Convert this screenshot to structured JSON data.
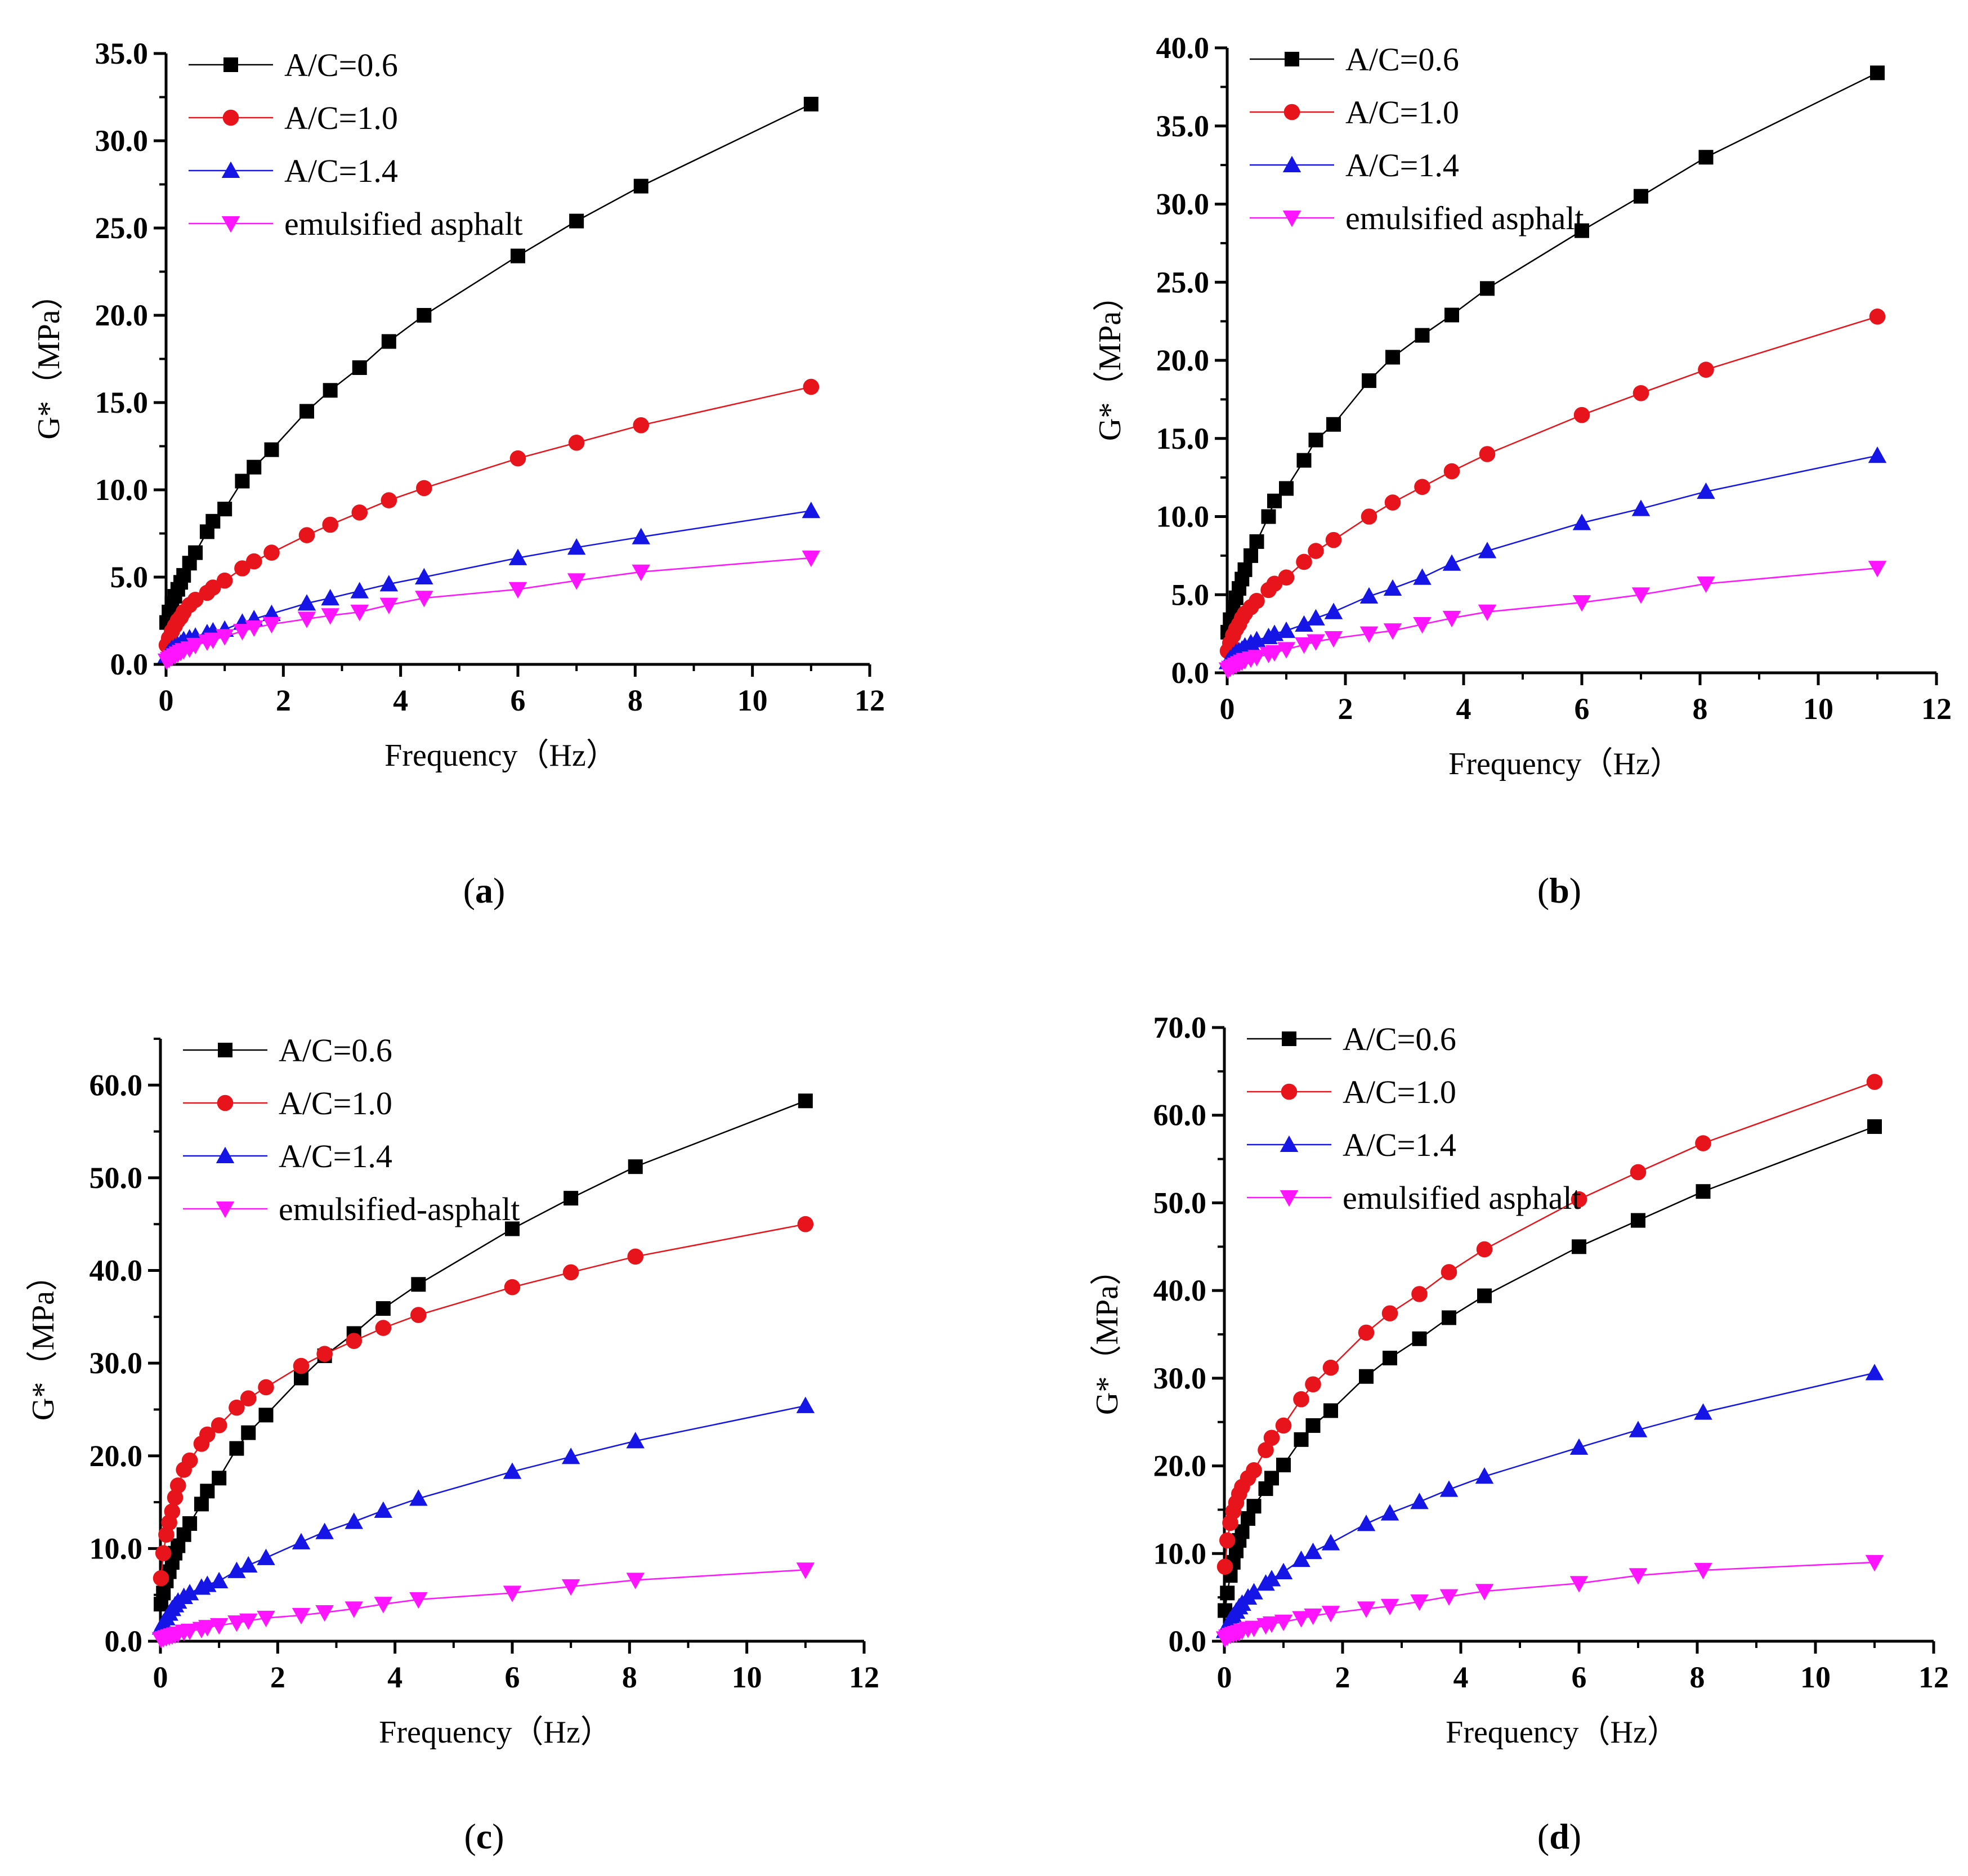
{
  "figure": {
    "panels": [
      {
        "caption": "a"
      },
      {
        "caption": "b"
      },
      {
        "caption": "c"
      },
      {
        "caption": "d"
      }
    ]
  },
  "chart_data": [
    {
      "type": "line",
      "panel": "a",
      "xlabel": "Frequency（Hz）",
      "ylabel": "G*（MPa）",
      "xlim": [
        0,
        12
      ],
      "ylim": [
        0,
        35
      ],
      "xticks": [
        "0",
        "2",
        "4",
        "6",
        "8",
        "10",
        "12"
      ],
      "yticks": [
        "0.0",
        "5.0",
        "10.0",
        "15.0",
        "20.0",
        "25.0",
        "30.0",
        "35.0"
      ],
      "legend_position": "top-left",
      "x": [
        0.01,
        0.05,
        0.1,
        0.15,
        0.2,
        0.25,
        0.3,
        0.4,
        0.5,
        0.7,
        0.8,
        1.0,
        1.3,
        1.5,
        1.8,
        2.4,
        2.8,
        3.3,
        3.8,
        4.4,
        6.0,
        7.0,
        8.1,
        11.0
      ],
      "series": [
        {
          "name": "A/C=0.6",
          "color": "#000000",
          "marker": "square",
          "values": [
            2.4,
            3.0,
            3.5,
            3.9,
            4.3,
            4.7,
            5.1,
            5.8,
            6.4,
            7.6,
            8.2,
            8.9,
            10.5,
            11.3,
            12.3,
            14.5,
            15.7,
            17.0,
            18.5,
            20.0,
            23.4,
            25.4,
            27.4,
            32.1
          ]
        },
        {
          "name": "A/C=1.0",
          "color": "#e8141c",
          "marker": "circle",
          "values": [
            1.1,
            1.5,
            1.9,
            2.2,
            2.5,
            2.7,
            3.0,
            3.4,
            3.7,
            4.1,
            4.4,
            4.8,
            5.5,
            5.9,
            6.4,
            7.4,
            8.0,
            8.7,
            9.4,
            10.1,
            11.8,
            12.7,
            13.7,
            15.9
          ]
        },
        {
          "name": "A/C=1.4",
          "color": "#1515e6",
          "marker": "triangle-up",
          "values": [
            0.5,
            0.7,
            0.9,
            1.0,
            1.1,
            1.2,
            1.4,
            1.5,
            1.6,
            1.8,
            1.9,
            2.0,
            2.4,
            2.6,
            2.9,
            3.5,
            3.8,
            4.2,
            4.6,
            5.0,
            6.1,
            6.7,
            7.3,
            8.8
          ]
        },
        {
          "name": "emulsified asphalt",
          "color": "#ff14ff",
          "marker": "triangle-down",
          "values": [
            0.2,
            0.3,
            0.4,
            0.5,
            0.6,
            0.7,
            0.8,
            0.9,
            1.1,
            1.3,
            1.4,
            1.6,
            1.9,
            2.1,
            2.3,
            2.6,
            2.8,
            3.0,
            3.4,
            3.8,
            4.3,
            4.8,
            5.3,
            6.1
          ]
        }
      ]
    },
    {
      "type": "line",
      "panel": "b",
      "xlabel": "Frequency（Hz）",
      "ylabel": "G*（MPa）",
      "xlim": [
        0,
        12
      ],
      "ylim": [
        0,
        40
      ],
      "xticks": [
        "0",
        "2",
        "4",
        "6",
        "8",
        "10",
        "12"
      ],
      "yticks": [
        "0.0",
        "5.0",
        "10.0",
        "15.0",
        "20.0",
        "25.0",
        "30.0",
        "35.0",
        "40.0"
      ],
      "legend_position": "top-left",
      "x": [
        0.01,
        0.05,
        0.1,
        0.15,
        0.2,
        0.25,
        0.3,
        0.4,
        0.5,
        0.7,
        0.8,
        1.0,
        1.3,
        1.5,
        1.8,
        2.4,
        2.8,
        3.3,
        3.8,
        4.4,
        6.0,
        7.0,
        8.1,
        11.0
      ],
      "series": [
        {
          "name": "A/C=0.6",
          "color": "#000000",
          "marker": "square",
          "values": [
            2.6,
            3.4,
            4.2,
            4.8,
            5.4,
            6.0,
            6.6,
            7.5,
            8.4,
            10.0,
            11.0,
            11.8,
            13.6,
            14.9,
            15.9,
            18.7,
            20.2,
            21.6,
            22.9,
            24.6,
            28.3,
            30.5,
            33.0,
            38.4
          ]
        },
        {
          "name": "A/C=1.0",
          "color": "#e8141c",
          "marker": "circle",
          "values": [
            1.4,
            1.9,
            2.4,
            2.8,
            3.1,
            3.5,
            3.8,
            4.2,
            4.6,
            5.3,
            5.7,
            6.1,
            7.1,
            7.8,
            8.5,
            10.0,
            10.9,
            11.9,
            12.9,
            14.0,
            16.5,
            17.9,
            19.4,
            22.8
          ]
        },
        {
          "name": "A/C=1.4",
          "color": "#1515e6",
          "marker": "triangle-up",
          "values": [
            0.7,
            0.9,
            1.1,
            1.3,
            1.4,
            1.5,
            1.7,
            1.9,
            2.1,
            2.3,
            2.5,
            2.7,
            3.1,
            3.5,
            3.9,
            4.9,
            5.4,
            6.1,
            7.0,
            7.8,
            9.6,
            10.5,
            11.6,
            13.9
          ]
        },
        {
          "name": "emulsified asphalt",
          "color": "#ff14ff",
          "marker": "triangle-down",
          "values": [
            0.2,
            0.3,
            0.4,
            0.5,
            0.6,
            0.7,
            0.8,
            0.9,
            1.0,
            1.2,
            1.3,
            1.5,
            1.8,
            2.0,
            2.2,
            2.5,
            2.7,
            3.1,
            3.5,
            3.9,
            4.5,
            5.0,
            5.7,
            6.7
          ]
        }
      ]
    },
    {
      "type": "line",
      "panel": "c",
      "xlabel": "Frequency（Hz）",
      "ylabel": "G*（MPa）",
      "xlim": [
        0,
        12
      ],
      "ylim": [
        0,
        65
      ],
      "xticks": [
        "0",
        "2",
        "4",
        "6",
        "8",
        "10",
        "12"
      ],
      "yticks": [
        "0.0",
        "10.0",
        "20.0",
        "30.0",
        "40.0",
        "50.0",
        "60.0"
      ],
      "ytick_values": [
        0,
        10,
        20,
        30,
        40,
        50,
        60
      ],
      "legend_position": "top-left",
      "x": [
        0.01,
        0.05,
        0.1,
        0.15,
        0.2,
        0.25,
        0.3,
        0.4,
        0.5,
        0.7,
        0.8,
        1.0,
        1.3,
        1.5,
        1.8,
        2.4,
        2.8,
        3.3,
        3.8,
        4.4,
        6.0,
        7.0,
        8.1,
        11.0
      ],
      "series": [
        {
          "name": "A/C=0.6",
          "color": "#000000",
          "marker": "square",
          "values": [
            4.0,
            5.2,
            6.5,
            7.5,
            8.5,
            9.5,
            10.3,
            11.5,
            12.7,
            14.8,
            16.2,
            17.6,
            20.8,
            22.5,
            24.4,
            28.4,
            30.8,
            33.2,
            35.9,
            38.5,
            44.5,
            47.8,
            51.2,
            58.3
          ]
        },
        {
          "name": "A/C=1.0",
          "color": "#e8141c",
          "marker": "circle",
          "values": [
            6.8,
            9.5,
            11.5,
            12.8,
            14.0,
            15.5,
            16.8,
            18.5,
            19.5,
            21.3,
            22.3,
            23.3,
            25.2,
            26.2,
            27.4,
            29.7,
            31.0,
            32.4,
            33.8,
            35.2,
            38.2,
            39.8,
            41.5,
            45.0
          ]
        },
        {
          "name": "A/C=1.4",
          "color": "#1515e6",
          "marker": "triangle-up",
          "values": [
            1.5,
            2.0,
            2.5,
            3.0,
            3.5,
            3.9,
            4.3,
            4.8,
            5.2,
            5.8,
            6.1,
            6.5,
            7.6,
            8.2,
            9.0,
            10.7,
            11.8,
            12.9,
            14.1,
            15.4,
            18.3,
            19.9,
            21.6,
            25.4
          ]
        },
        {
          "name": "emulsified-asphalt",
          "color": "#ff14ff",
          "marker": "triangle-down",
          "values": [
            0.2,
            0.3,
            0.4,
            0.5,
            0.6,
            0.7,
            0.8,
            1.0,
            1.1,
            1.3,
            1.5,
            1.7,
            2.0,
            2.2,
            2.5,
            2.8,
            3.1,
            3.5,
            4.0,
            4.5,
            5.2,
            5.9,
            6.6,
            7.7
          ]
        }
      ]
    },
    {
      "type": "line",
      "panel": "d",
      "xlabel": "Frequency（Hz）",
      "ylabel": "G*（MPa）",
      "xlim": [
        0,
        12
      ],
      "ylim": [
        0,
        70
      ],
      "xticks": [
        "0",
        "2",
        "4",
        "6",
        "8",
        "10",
        "12"
      ],
      "yticks": [
        "0.0",
        "10.0",
        "20.0",
        "30.0",
        "40.0",
        "50.0",
        "60.0",
        "70.0"
      ],
      "legend_position": "top-left",
      "x": [
        0.01,
        0.05,
        0.1,
        0.15,
        0.2,
        0.25,
        0.3,
        0.4,
        0.5,
        0.7,
        0.8,
        1.0,
        1.3,
        1.5,
        1.8,
        2.4,
        2.8,
        3.3,
        3.8,
        4.4,
        6.0,
        7.0,
        8.1,
        11.0
      ],
      "series": [
        {
          "name": "A/C=0.6",
          "color": "#000000",
          "marker": "square",
          "values": [
            3.5,
            5.5,
            7.5,
            9.0,
            10.3,
            11.5,
            12.5,
            14.0,
            15.4,
            17.4,
            18.6,
            20.1,
            23.0,
            24.6,
            26.3,
            30.2,
            32.3,
            34.5,
            36.9,
            39.4,
            45.0,
            48.0,
            51.3,
            58.7
          ]
        },
        {
          "name": "A/C=1.0",
          "color": "#e8141c",
          "marker": "circle",
          "values": [
            8.5,
            11.5,
            13.5,
            14.8,
            15.8,
            16.8,
            17.6,
            18.6,
            19.5,
            21.8,
            23.2,
            24.6,
            27.6,
            29.3,
            31.2,
            35.2,
            37.4,
            39.6,
            42.1,
            44.7,
            50.4,
            53.5,
            56.8,
            63.8
          ]
        },
        {
          "name": "A/C=1.4",
          "color": "#1515e6",
          "marker": "triangle-up",
          "values": [
            1.2,
            1.8,
            2.4,
            2.9,
            3.4,
            3.9,
            4.3,
            5.0,
            5.6,
            6.6,
            7.1,
            7.9,
            9.3,
            10.2,
            11.2,
            13.4,
            14.6,
            15.9,
            17.3,
            18.8,
            22.1,
            24.1,
            26.1,
            30.6
          ]
        },
        {
          "name": "emulsified asphalt",
          "color": "#ff14ff",
          "marker": "triangle-down",
          "values": [
            0.3,
            0.5,
            0.7,
            0.8,
            0.9,
            1.0,
            1.2,
            1.4,
            1.5,
            1.8,
            2.0,
            2.2,
            2.6,
            2.9,
            3.2,
            3.7,
            4.0,
            4.5,
            5.1,
            5.7,
            6.6,
            7.5,
            8.1,
            9.0
          ]
        }
      ]
    }
  ]
}
